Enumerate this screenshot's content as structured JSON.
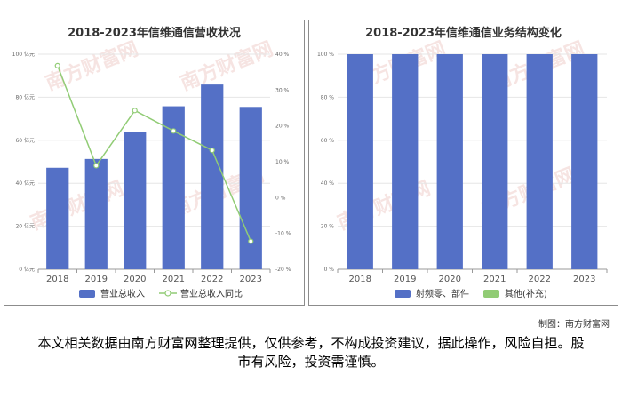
{
  "credit": "制图：南方财富网",
  "disclaimer": "本文相关数据由南方财富网整理提供，仅供参考，不构成投资建议，据此操作，风险自担。股市有风险，投资需谨慎。",
  "watermark": "南方财富网",
  "colors": {
    "bar": "#5470c6",
    "line": "#91cc75",
    "grid": "#e6e6e6",
    "axis": "#999999",
    "text": "#666666"
  },
  "chart_data": [
    {
      "type": "bar",
      "title": "2018-2023年信维通信营收状况",
      "categories": [
        "2018",
        "2019",
        "2020",
        "2021",
        "2022",
        "2023"
      ],
      "series": [
        {
          "name": "营业总收入",
          "type": "bar",
          "axis": "left",
          "values": [
            47.2,
            51.3,
            63.7,
            75.8,
            85.9,
            75.5
          ]
        },
        {
          "name": "营业总收入同比",
          "type": "line",
          "axis": "right",
          "values": [
            36.8,
            8.9,
            24.3,
            18.6,
            13.2,
            -12.2
          ]
        }
      ],
      "y_left": {
        "ticks": [
          "0 亿元",
          "20 亿元",
          "40 亿元",
          "60 亿元",
          "80 亿元",
          "100 亿元"
        ],
        "ylim": [
          0,
          100
        ]
      },
      "y_right": {
        "ticks": [
          "-20 %",
          "-10 %",
          "0 %",
          "10 %",
          "20 %",
          "30 %",
          "40 %"
        ],
        "ylim": [
          -20,
          40
        ]
      },
      "grid": true,
      "legend": "bottom"
    },
    {
      "type": "bar",
      "stacked": true,
      "title": "2018-2023年信维通信业务结构变化",
      "categories": [
        "2018",
        "2019",
        "2020",
        "2021",
        "2022",
        "2023"
      ],
      "series": [
        {
          "name": "射频零、部件",
          "values": [
            100,
            100,
            100,
            100,
            100,
            100
          ]
        },
        {
          "name": "其他(补充)",
          "values": [
            0,
            0,
            0,
            0,
            0,
            0
          ]
        }
      ],
      "y_left": {
        "ticks": [
          "0 %",
          "20 %",
          "40 %",
          "60 %",
          "80 %",
          "100 %"
        ],
        "ylim": [
          0,
          100
        ]
      },
      "grid": true,
      "legend": "bottom"
    }
  ]
}
